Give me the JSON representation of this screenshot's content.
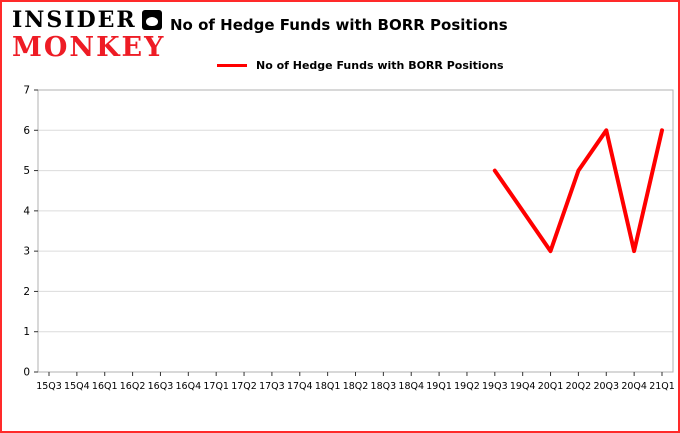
{
  "brand": {
    "line1": "INSIDER",
    "line2": "MONKEY"
  },
  "legend": {
    "label": "No of Hedge Funds with BORR Positions",
    "color": "#ff0000"
  },
  "chart_data": {
    "type": "line",
    "title": "No of Hedge Funds with BORR Positions",
    "categories": [
      "15Q3",
      "15Q4",
      "16Q1",
      "16Q2",
      "16Q3",
      "16Q4",
      "17Q1",
      "17Q2",
      "17Q3",
      "17Q4",
      "18Q1",
      "18Q2",
      "18Q3",
      "18Q4",
      "19Q1",
      "19Q2",
      "19Q3",
      "19Q4",
      "20Q1",
      "20Q2",
      "20Q3",
      "20Q4",
      "21Q1"
    ],
    "series": [
      {
        "name": "No of Hedge Funds with BORR Positions",
        "color": "#ff0000",
        "values": [
          null,
          null,
          null,
          null,
          null,
          null,
          null,
          null,
          null,
          null,
          null,
          null,
          null,
          null,
          null,
          null,
          5,
          4,
          3,
          5,
          6,
          3,
          6
        ]
      }
    ],
    "ylim": [
      0,
      7
    ],
    "yticks": [
      0,
      1,
      2,
      3,
      4,
      5,
      6,
      7
    ],
    "grid": "horizontal",
    "legend_position": "top-left"
  },
  "colors": {
    "frame_border": "#ff2a2a",
    "grid": "#dcdcdc",
    "plot_border": "#b0b0b0",
    "brand_red": "#ee1c25",
    "text": "#000000"
  }
}
